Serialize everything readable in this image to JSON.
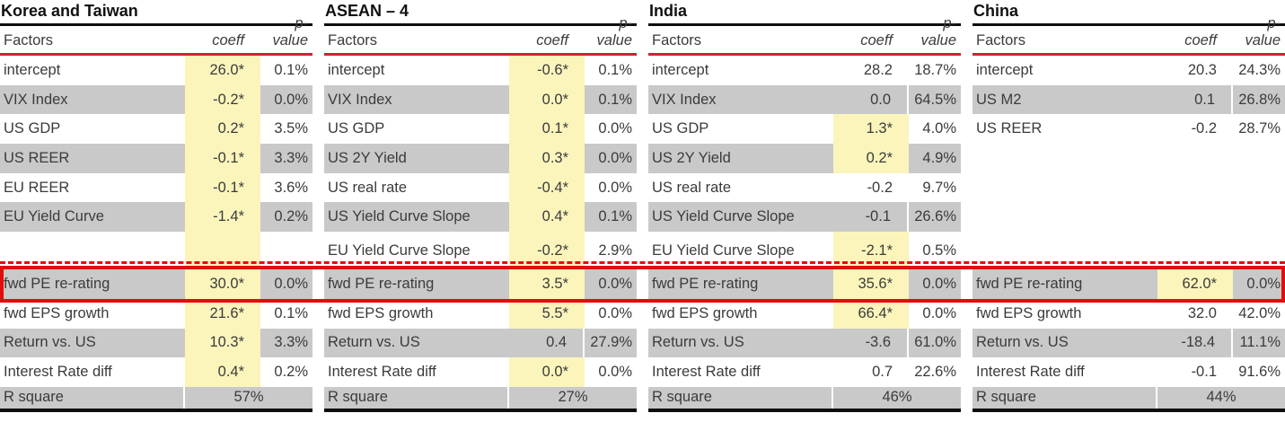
{
  "colors": {
    "accent-red": "#cd2330",
    "box-red": "#e20d0d",
    "row-gray": "#c9c9c9",
    "highlight-yellow": "#fbf5bc",
    "rule-black": "#0e0e0e",
    "text": "#3b3b3b"
  },
  "columns": {
    "factors": "Factors",
    "coeff": "coeff",
    "pvalue": "p-value"
  },
  "annotation": {
    "boxed_row": "fwd PE re-rating"
  },
  "panels": [
    {
      "title": "Korea and Taiwan",
      "r_square_label": "R square",
      "r_square": "57%",
      "rows": [
        {
          "factor": "intercept",
          "coeff": "26.0*",
          "pvalue": "0.1%",
          "shaded": false,
          "highlight": true
        },
        {
          "factor": "VIX Index",
          "coeff": "-0.2*",
          "pvalue": "0.0%",
          "shaded": true,
          "highlight": true
        },
        {
          "factor": "US GDP",
          "coeff": "0.2*",
          "pvalue": "3.5%",
          "shaded": false,
          "highlight": true
        },
        {
          "factor": "US REER",
          "coeff": "-0.1*",
          "pvalue": "3.3%",
          "shaded": true,
          "highlight": true
        },
        {
          "factor": "EU REER",
          "coeff": "-0.1*",
          "pvalue": "3.6%",
          "shaded": false,
          "highlight": true
        },
        {
          "factor": "EU Yield Curve",
          "coeff": "-1.4*",
          "pvalue": "0.2%",
          "shaded": true,
          "highlight": true
        },
        {
          "factor": "",
          "coeff": "",
          "pvalue": "",
          "shaded": false,
          "highlight": true
        },
        {
          "factor": "fwd PE re-rating",
          "coeff": "30.0*",
          "pvalue": "0.0%",
          "shaded": true,
          "highlight": true
        },
        {
          "factor": "fwd EPS growth",
          "coeff": "21.6*",
          "pvalue": "0.1%",
          "shaded": false,
          "highlight": true
        },
        {
          "factor": "Return vs. US",
          "coeff": "10.3*",
          "pvalue": "3.3%",
          "shaded": true,
          "highlight": true
        },
        {
          "factor": "Interest Rate diff",
          "coeff": "0.4*",
          "pvalue": "0.2%",
          "shaded": false,
          "highlight": true
        }
      ]
    },
    {
      "title": "ASEAN – 4",
      "r_square_label": "R square",
      "r_square": "27%",
      "rows": [
        {
          "factor": "intercept",
          "coeff": "-0.6*",
          "pvalue": "0.1%",
          "shaded": false,
          "highlight": true
        },
        {
          "factor": "VIX Index",
          "coeff": "0.0*",
          "pvalue": "0.1%",
          "shaded": true,
          "highlight": true
        },
        {
          "factor": "US GDP",
          "coeff": "0.1*",
          "pvalue": "0.0%",
          "shaded": false,
          "highlight": true
        },
        {
          "factor": "US 2Y Yield",
          "coeff": "0.3*",
          "pvalue": "0.0%",
          "shaded": true,
          "highlight": true
        },
        {
          "factor": "US real rate",
          "coeff": "-0.4*",
          "pvalue": "0.0%",
          "shaded": false,
          "highlight": true
        },
        {
          "factor": "US Yield Curve Slope",
          "coeff": "0.4*",
          "pvalue": "0.1%",
          "shaded": true,
          "highlight": true
        },
        {
          "factor": "EU Yield Curve Slope",
          "coeff": "-0.2*",
          "pvalue": "2.9%",
          "shaded": false,
          "highlight": true
        },
        {
          "factor": "fwd PE re-rating",
          "coeff": "3.5*",
          "pvalue": "0.0%",
          "shaded": true,
          "highlight": true
        },
        {
          "factor": "fwd EPS growth",
          "coeff": "5.5*",
          "pvalue": "0.0%",
          "shaded": false,
          "highlight": true
        },
        {
          "factor": "Return vs. US",
          "coeff": "0.4",
          "pvalue": "27.9%",
          "shaded": true,
          "highlight": false
        },
        {
          "factor": "Interest Rate diff",
          "coeff": "0.0*",
          "pvalue": "0.0%",
          "shaded": false,
          "highlight": true
        }
      ]
    },
    {
      "title": "India",
      "r_square_label": "R square",
      "r_square": "46%",
      "rows": [
        {
          "factor": "intercept",
          "coeff": "28.2",
          "pvalue": "18.7%",
          "shaded": false,
          "highlight": false
        },
        {
          "factor": "VIX Index",
          "coeff": "0.0",
          "pvalue": "64.5%",
          "shaded": true,
          "highlight": false
        },
        {
          "factor": "US GDP",
          "coeff": "1.3*",
          "pvalue": "4.0%",
          "shaded": false,
          "highlight": true
        },
        {
          "factor": "US 2Y Yield",
          "coeff": "0.2*",
          "pvalue": "4.9%",
          "shaded": true,
          "highlight": true
        },
        {
          "factor": "US real rate",
          "coeff": "-0.2",
          "pvalue": "9.7%",
          "shaded": false,
          "highlight": false
        },
        {
          "factor": "US Yield Curve Slope",
          "coeff": "-0.1",
          "pvalue": "26.6%",
          "shaded": true,
          "highlight": false
        },
        {
          "factor": "EU Yield Curve Slope",
          "coeff": "-2.1*",
          "pvalue": "0.5%",
          "shaded": false,
          "highlight": true
        },
        {
          "factor": "fwd PE re-rating",
          "coeff": "35.6*",
          "pvalue": "0.0%",
          "shaded": true,
          "highlight": true
        },
        {
          "factor": "fwd EPS growth",
          "coeff": "66.4*",
          "pvalue": "0.0%",
          "shaded": false,
          "highlight": true
        },
        {
          "factor": "Return vs. US",
          "coeff": "-3.6",
          "pvalue": "61.0%",
          "shaded": true,
          "highlight": false
        },
        {
          "factor": "Interest Rate diff",
          "coeff": "0.7",
          "pvalue": "22.6%",
          "shaded": false,
          "highlight": false
        }
      ]
    },
    {
      "title": "China",
      "r_square_label": "R square",
      "r_square": "44%",
      "rows": [
        {
          "factor": "intercept",
          "coeff": "20.3",
          "pvalue": "24.3%",
          "shaded": false,
          "highlight": false
        },
        {
          "factor": "US M2",
          "coeff": "0.1",
          "pvalue": "26.8%",
          "shaded": true,
          "highlight": false
        },
        {
          "factor": "US REER",
          "coeff": "-0.2",
          "pvalue": "28.7%",
          "shaded": false,
          "highlight": false
        },
        {
          "factor": "",
          "coeff": "",
          "pvalue": "",
          "shaded": false,
          "highlight": false
        },
        {
          "factor": "",
          "coeff": "",
          "pvalue": "",
          "shaded": false,
          "highlight": false
        },
        {
          "factor": "",
          "coeff": "",
          "pvalue": "",
          "shaded": false,
          "highlight": false
        },
        {
          "factor": "",
          "coeff": "",
          "pvalue": "",
          "shaded": false,
          "highlight": false
        },
        {
          "factor": "fwd PE re-rating",
          "coeff": "62.0*",
          "pvalue": "0.0%",
          "shaded": true,
          "highlight": true
        },
        {
          "factor": "fwd EPS growth",
          "coeff": "32.0",
          "pvalue": "42.0%",
          "shaded": false,
          "highlight": false
        },
        {
          "factor": "Return vs. US",
          "coeff": "-18.4",
          "pvalue": "11.1%",
          "shaded": true,
          "highlight": false
        },
        {
          "factor": "Interest Rate diff",
          "coeff": "-0.1",
          "pvalue": "91.6%",
          "shaded": false,
          "highlight": false
        }
      ]
    }
  ]
}
